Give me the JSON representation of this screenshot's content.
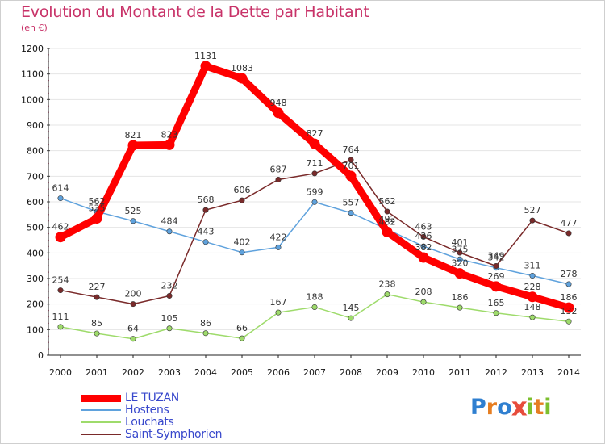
{
  "title": "Evolution du Montant de la Dette par Habitant",
  "subtitle": "(en €)",
  "brand": {
    "letters": [
      "P",
      "r",
      "o",
      "x",
      "i",
      "t",
      "i"
    ],
    "colors": [
      "#2f7fd0",
      "#e67e22",
      "#2f7fd0",
      "#e74c3c",
      "#7cbf2e",
      "#e67e22",
      "#7cbf2e"
    ]
  },
  "chart_data": {
    "type": "line",
    "title": "Evolution du Montant de la Dette par Habitant",
    "ylabel": "(en €)",
    "xlabel": "",
    "x": [
      "2000",
      "2001",
      "2002",
      "2003",
      "2004",
      "2005",
      "2006",
      "2007",
      "2008",
      "2009",
      "2010",
      "2011",
      "2012",
      "2013",
      "2014"
    ],
    "y_ticks": [
      "0",
      "100",
      "200",
      "300",
      "400",
      "500",
      "600",
      "700",
      "800",
      "900",
      "1000",
      "1100",
      "1200"
    ],
    "ylim": [
      0,
      1200
    ],
    "grid": "horizontal",
    "legend_position": "bottom-left",
    "series": [
      {
        "name": "LE TUZAN",
        "color": "#ff0000",
        "values": [
          462,
          535,
          821,
          823,
          1131,
          1083,
          948,
          827,
          701,
          482,
          382,
          320,
          269,
          228,
          186
        ],
        "labels": [
          "462",
          "535",
          "821",
          "823",
          "1131",
          "1083",
          "948",
          "827",
          "701",
          "482",
          "382",
          "320",
          "269",
          "228",
          "186"
        ]
      },
      {
        "name": "Hostens",
        "color": "#5fa2dd",
        "values": [
          614,
          562,
          525,
          484,
          443,
          402,
          422,
          599,
          557,
          492,
          426,
          375,
          342,
          311,
          278
        ],
        "labels": [
          "614",
          "562",
          "525",
          "484",
          "443",
          "402",
          "422",
          "599",
          "557",
          "492",
          "426",
          "375",
          "342",
          "311",
          "278"
        ]
      },
      {
        "name": "Louchats",
        "color": "#9edb6b",
        "values": [
          111,
          85,
          64,
          105,
          86,
          66,
          167,
          188,
          145,
          238,
          208,
          186,
          165,
          148,
          132
        ],
        "labels": [
          "111",
          "85",
          "64",
          "105",
          "86",
          "66",
          "167",
          "188",
          "145",
          "238",
          "208",
          "186",
          "165",
          "148",
          "132"
        ]
      },
      {
        "name": "Saint-Symphorien",
        "color": "#7a2a2a",
        "values": [
          254,
          227,
          200,
          232,
          568,
          606,
          687,
          711,
          764,
          562,
          463,
          401,
          349,
          527,
          477
        ],
        "labels": [
          "254",
          "227",
          "200",
          "232",
          "568",
          "606",
          "687",
          "711",
          "764",
          "562",
          "463",
          "401",
          "349",
          "527",
          "477"
        ]
      }
    ]
  }
}
